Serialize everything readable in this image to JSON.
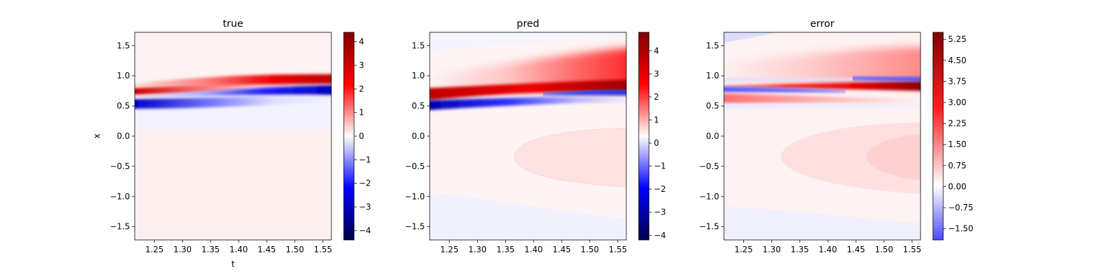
{
  "chart_data": [
    {
      "type": "heatmap",
      "title": "true",
      "xlabel": "t",
      "ylabel": "x",
      "xlim": [
        1.215,
        1.565
      ],
      "ylim": [
        -1.72,
        1.72
      ],
      "xticks": [
        "1.25",
        "1.30",
        "1.35",
        "1.40",
        "1.45",
        "1.50",
        "1.55"
      ],
      "yticks": [
        "-1.5",
        "-1.0",
        "-0.5",
        "0.0",
        "0.5",
        "1.0",
        "1.5"
      ],
      "colorbar": {
        "min": -4.4,
        "max": 4.4,
        "ticks": [
          "-4",
          "-3",
          "-2",
          "-1",
          "0",
          "1",
          "2",
          "3",
          "4"
        ]
      },
      "field": [
        {
          "x": 1.215,
          "y0": 0.1,
          "y1": 1.72,
          "value": 0.15
        },
        {
          "x": 1.215,
          "y0": -1.72,
          "y1": 0.1,
          "value": 0.25
        },
        {
          "x": 1.215,
          "y0": 0.1,
          "y1": 0.6,
          "value": -0.2
        },
        {
          "x": 1.215,
          "y0": 0.48,
          "y1": 0.6,
          "value": -4.1
        },
        {
          "x": 1.215,
          "y0": 0.65,
          "y1": 0.78,
          "value": 3.9
        },
        {
          "x": 1.565,
          "y0": 0.68,
          "y1": 0.8,
          "value": -3.8
        },
        {
          "x": 1.565,
          "y0": 0.84,
          "y1": 0.98,
          "value": 4.2
        }
      ]
    },
    {
      "type": "heatmap",
      "title": "pred",
      "xlabel": "",
      "ylabel": "",
      "xlim": [
        1.215,
        1.565
      ],
      "ylim": [
        -1.72,
        1.72
      ],
      "xticks": [
        "1.25",
        "1.30",
        "1.35",
        "1.40",
        "1.45",
        "1.50",
        "1.55"
      ],
      "yticks": [
        "-1.5",
        "-1.0",
        "-0.5",
        "0.0",
        "0.5",
        "1.0",
        "1.5"
      ],
      "colorbar": {
        "min": -4.2,
        "max": 4.8,
        "ticks": [
          "-4",
          "-3",
          "-2",
          "-1",
          "0",
          "1",
          "2",
          "3",
          "4"
        ]
      },
      "field": [
        {
          "x": 1.215,
          "y0": 0.62,
          "y1": 0.82,
          "value": 4.5
        },
        {
          "x": 1.215,
          "y0": 0.48,
          "y1": 0.62,
          "value": -4.0
        },
        {
          "x": 1.565,
          "y0": 0.78,
          "y1": 1.4,
          "value": 4.0
        },
        {
          "x": 1.565,
          "y0": 0.68,
          "y1": 0.78,
          "value": -3.0
        },
        {
          "x": 1.565,
          "y0": -0.8,
          "y1": 0.15,
          "value": 0.5
        }
      ]
    },
    {
      "type": "heatmap",
      "title": "error",
      "xlabel": "",
      "ylabel": "",
      "xlim": [
        1.215,
        1.565
      ],
      "ylim": [
        -1.72,
        1.72
      ],
      "xticks": [
        "1.25",
        "1.30",
        "1.35",
        "1.40",
        "1.45",
        "1.50",
        "1.55"
      ],
      "yticks": [
        "-1.5",
        "-1.0",
        "-0.5",
        "0.0",
        "0.5",
        "1.0",
        "1.5"
      ],
      "colorbar": {
        "min": -1.9,
        "max": 5.5,
        "ticks": [
          "-1.50",
          "-0.75",
          "0.00",
          "0.75",
          "1.50",
          "2.25",
          "3.00",
          "3.75",
          "4.50",
          "5.25"
        ]
      },
      "field": [
        {
          "x": 1.215,
          "y0": 0.58,
          "y1": 0.7,
          "value": 2.0
        },
        {
          "x": 1.215,
          "y0": 0.74,
          "y1": 0.82,
          "value": -1.5
        },
        {
          "x": 1.565,
          "y0": 0.78,
          "y1": 0.88,
          "value": 5.0
        },
        {
          "x": 1.565,
          "y0": 0.9,
          "y1": 0.98,
          "value": -1.2
        },
        {
          "x": 1.565,
          "y0": 1.0,
          "y1": 1.4,
          "value": 2.0
        },
        {
          "x": 1.565,
          "y0": -0.8,
          "y1": 0.15,
          "value": 0.6
        }
      ]
    }
  ]
}
